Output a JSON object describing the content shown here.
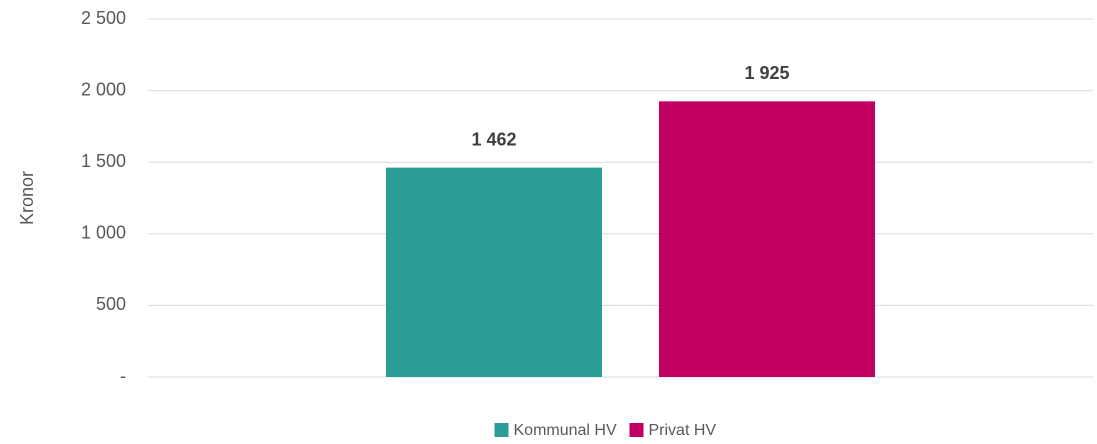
{
  "chart_data": {
    "type": "bar",
    "categories": [
      null
    ],
    "series": [
      {
        "name": "Kommunal HV",
        "color": "#2a9d96",
        "values": [
          1462
        ],
        "value_labels": [
          "1 462"
        ]
      },
      {
        "name": "Privat HV",
        "color": "#c20062",
        "values": [
          1925
        ],
        "value_labels": [
          "1 925"
        ]
      }
    ],
    "ylabel": "Kronor",
    "ylim": [
      0,
      2500
    ],
    "yticks": [
      {
        "value": 0,
        "label": "-"
      },
      500,
      {
        "value": 1000,
        "label": "1 000"
      },
      {
        "value": 1500,
        "label": "1 500"
      },
      {
        "value": 2000,
        "label": "2 000"
      },
      {
        "value": 2500,
        "label": "2 500"
      }
    ],
    "grid": true,
    "legend": "bottom"
  }
}
